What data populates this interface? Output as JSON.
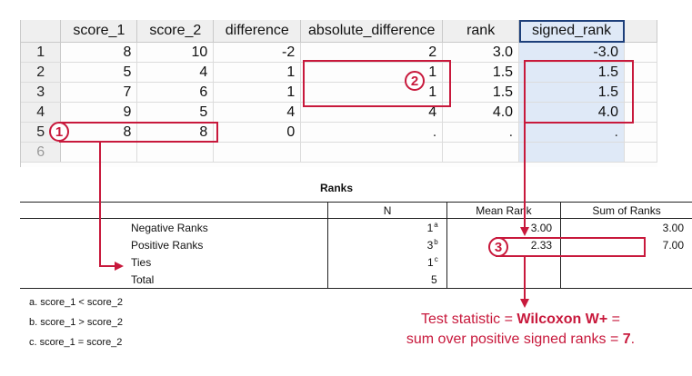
{
  "grid": {
    "columns": [
      {
        "label": "score_1"
      },
      {
        "label": "score_2"
      },
      {
        "label": "difference"
      },
      {
        "label": "absolute_difference"
      },
      {
        "label": "rank"
      },
      {
        "label": "signed_rank"
      }
    ],
    "selected_column": "signed_rank",
    "rows": [
      {
        "num": "1",
        "cells": [
          "8",
          "10",
          "-2",
          "2",
          "3.0",
          "-3.0"
        ]
      },
      {
        "num": "2",
        "cells": [
          "5",
          "4",
          "1",
          "1",
          "1.5",
          "1.5"
        ]
      },
      {
        "num": "3",
        "cells": [
          "7",
          "6",
          "1",
          "1",
          "1.5",
          "1.5"
        ]
      },
      {
        "num": "4",
        "cells": [
          "9",
          "5",
          "4",
          "4",
          "4.0",
          "4.0"
        ]
      },
      {
        "num": "5",
        "cells": [
          "8",
          "8",
          "0",
          ".",
          ".",
          "."
        ]
      },
      {
        "num": "6",
        "cells": [
          "",
          "",
          "",
          "",
          "",
          ""
        ]
      }
    ]
  },
  "ranks": {
    "title": "Ranks",
    "headers": [
      "",
      "N",
      "Mean Rank",
      "Sum of Ranks"
    ],
    "rows": [
      {
        "label": "Negative Ranks",
        "n": "1",
        "n_sup": "a",
        "mean": "3.00",
        "sum": "3.00"
      },
      {
        "label": "Positive Ranks",
        "n": "3",
        "n_sup": "b",
        "mean": "2.33",
        "sum": "7.00"
      },
      {
        "label": "Ties",
        "n": "1",
        "n_sup": "c",
        "mean": "",
        "sum": ""
      },
      {
        "label": "Total",
        "n": "5",
        "n_sup": "",
        "mean": "",
        "sum": ""
      }
    ]
  },
  "footnotes": [
    "a. score_1 < score_2",
    "b. score_1 > score_2",
    "c. score_1 = score_2"
  ],
  "badges": [
    "1",
    "2",
    "3"
  ],
  "callout": {
    "line1_prefix": "Test statistic = ",
    "line1_bold": "Wilcoxon W+",
    "line1_suffix": " =",
    "line2_prefix": "sum over positive signed ranks = ",
    "line2_bold": "7",
    "line2_suffix": "."
  },
  "colors": {
    "annotation": "#c8193c",
    "selection": "#1d3f7a"
  }
}
